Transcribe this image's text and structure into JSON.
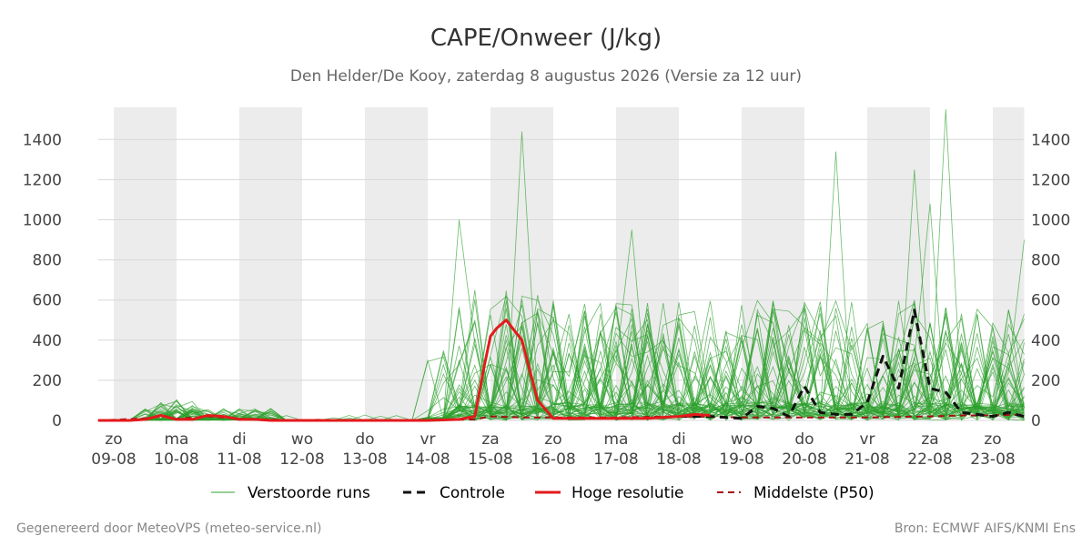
{
  "title": "CAPE/Onweer (J/kg)",
  "subtitle": "Den Helder/De Kooy, zaterdag  8 augustus 2026 (Versie za 12 uur)",
  "footer": {
    "left": "Gegenereerd door MeteoVPS (meteo-service.nl)",
    "right": "Bron: ECMWF AIFS/KNMI Ens"
  },
  "colors": {
    "ensemble": "#2ca02c",
    "control": "#111111",
    "highres": "#e31a1c",
    "median": "#a50f15",
    "shade": "#ececec",
    "grid": "#d8d8d8"
  },
  "legend": [
    {
      "key": "ensemble",
      "label": "Verstoorde runs"
    },
    {
      "key": "control",
      "label": "Controle"
    },
    {
      "key": "highres",
      "label": "Hoge resolutie"
    },
    {
      "key": "median",
      "label": "Middelste (P50)"
    }
  ],
  "chart_data": {
    "type": "line",
    "title": "CAPE/Onweer (J/kg)",
    "subtitle": "Den Helder/De Kooy, zaterdag  8 augustus 2026 (Versie za 12 uur)",
    "xlabel": "",
    "ylabel": "",
    "x_unit": "days from 09-08 00h",
    "xlim": [
      -0.25,
      14.5
    ],
    "ylim": [
      0,
      1560
    ],
    "yticks": [
      0,
      200,
      400,
      600,
      800,
      1000,
      1200,
      1400
    ],
    "grid": true,
    "legend_position": "bottom",
    "x_ticks": [
      {
        "day": "zo",
        "date": "09-08"
      },
      {
        "day": "ma",
        "date": "10-08"
      },
      {
        "day": "di",
        "date": "11-08"
      },
      {
        "day": "wo",
        "date": "12-08"
      },
      {
        "day": "do",
        "date": "13-08"
      },
      {
        "day": "vr",
        "date": "14-08"
      },
      {
        "day": "za",
        "date": "15-08"
      },
      {
        "day": "zo",
        "date": "16-08"
      },
      {
        "day": "ma",
        "date": "17-08"
      },
      {
        "day": "di",
        "date": "18-08"
      },
      {
        "day": "wo",
        "date": "19-08"
      },
      {
        "day": "do",
        "date": "20-08"
      },
      {
        "day": "vr",
        "date": "21-08"
      },
      {
        "day": "za",
        "date": "22-08"
      },
      {
        "day": "zo",
        "date": "23-08"
      }
    ],
    "shaded_days": [
      0,
      2,
      4,
      6,
      8,
      10,
      12,
      14
    ],
    "series": [
      {
        "name": "Hoge resolutie",
        "style": "highres",
        "x": [
          -0.25,
          0,
          0.25,
          0.5,
          0.75,
          1.0,
          1.25,
          1.5,
          1.75,
          2.0,
          2.25,
          2.5,
          3.0,
          4.0,
          5.0,
          5.5,
          5.75,
          5.9,
          6.0,
          6.1,
          6.25,
          6.5,
          6.75,
          7.0,
          7.5,
          8.0,
          8.5,
          9.0,
          9.25,
          9.5
        ],
        "y": [
          0,
          0,
          0,
          5,
          25,
          5,
          5,
          25,
          20,
          5,
          5,
          0,
          0,
          0,
          0,
          5,
          20,
          270,
          420,
          460,
          500,
          400,
          100,
          10,
          10,
          10,
          10,
          20,
          30,
          25
        ]
      },
      {
        "name": "Controle",
        "style": "control",
        "x": [
          9.0,
          9.5,
          10.0,
          10.25,
          10.5,
          10.75,
          11.0,
          11.25,
          11.5,
          11.75,
          12.0,
          12.25,
          12.5,
          12.75,
          13.0,
          13.25,
          13.5,
          13.75,
          14.0,
          14.25,
          14.5
        ],
        "y": [
          20,
          20,
          10,
          70,
          60,
          20,
          170,
          40,
          30,
          30,
          90,
          320,
          160,
          550,
          160,
          140,
          40,
          30,
          20,
          40,
          20
        ]
      },
      {
        "name": "Middelste (P50)",
        "style": "median",
        "x": [
          -0.25,
          0.5,
          0.75,
          1.0,
          1.5,
          2.0,
          3.0,
          4.0,
          5.0,
          5.75,
          6.0,
          6.5,
          7.0,
          8.0,
          9.0,
          10.0,
          11.0,
          12.0,
          13.0,
          13.5,
          14.0,
          14.5
        ],
        "y": [
          0,
          10,
          20,
          8,
          20,
          8,
          0,
          0,
          0,
          5,
          20,
          15,
          15,
          15,
          20,
          15,
          15,
          15,
          20,
          25,
          25,
          30
        ]
      }
    ],
    "ensemble": {
      "name": "Verstoorde runs",
      "members": 50,
      "x_step_days": 0.25,
      "peak_notes": [
        {
          "x": 6.5,
          "y": 1440
        },
        {
          "x": 11.5,
          "y": 1340
        },
        {
          "x": 13.25,
          "y": 1550
        },
        {
          "x": 12.75,
          "y": 1250
        },
        {
          "x": 13.0,
          "y": 1080
        },
        {
          "x": 5.5,
          "y": 1000
        },
        {
          "x": 8.25,
          "y": 950
        },
        {
          "x": 14.5,
          "y": 900
        }
      ]
    }
  }
}
